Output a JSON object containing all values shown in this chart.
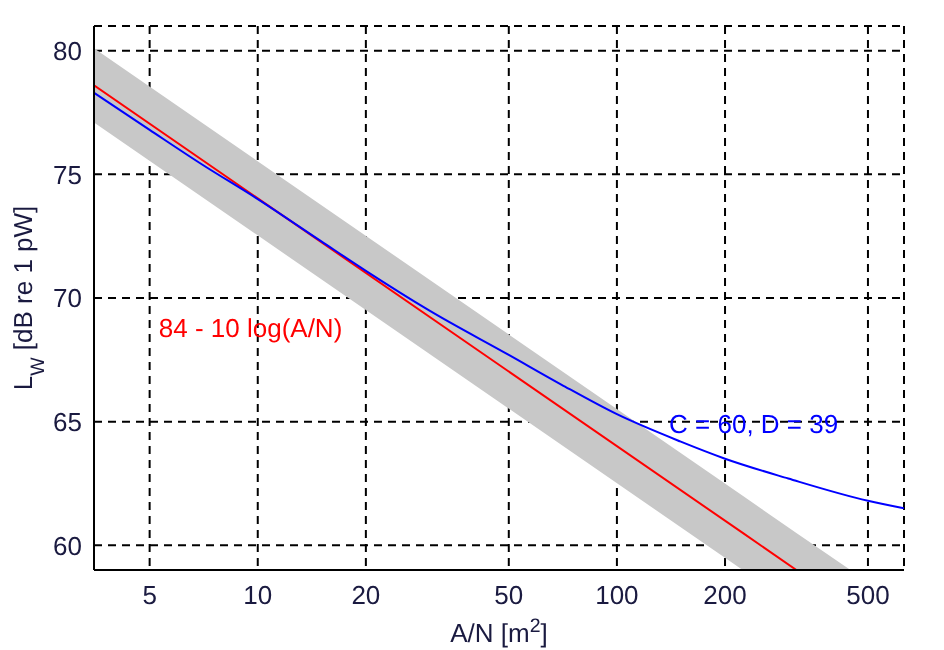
{
  "chart_data": {
    "type": "line",
    "xlabel": "A/N  [m$^{2}$]",
    "ylabel": "L$_{W}$  [dB re 1 pW]",
    "log": "x",
    "xlim": [
      3.5,
      630
    ],
    "ylim": [
      59,
      81
    ],
    "xticks": [
      5,
      10,
      20,
      50,
      100,
      200,
      500
    ],
    "yticks": [
      60,
      65,
      70,
      75,
      80
    ],
    "grid": true,
    "marker": "none",
    "line_style": "solid",
    "series": [
      {
        "color": "#ff0000",
        "x": [
          3.5,
          224,
          316,
          447
        ],
        "values": [
          78.6,
          60.5,
          59.0,
          null
        ],
        "upper": [
          80.1,
          62.0,
          60.5,
          59.0
        ],
        "lower": [
          77.1,
          59.0,
          59.0,
          59.0
        ]
      },
      {
        "color": "#0000ff",
        "x": [
          3.5,
          5,
          7,
          10,
          15,
          20,
          30,
          50,
          70,
          100,
          150,
          200,
          300,
          500,
          630
        ],
        "values": [
          78.3,
          76.8,
          75.4,
          74.0,
          72.3,
          71.1,
          69.5,
          67.7,
          66.5,
          65.3,
          64.2,
          63.5,
          62.7,
          61.8,
          61.5
        ]
      }
    ],
    "annotations": [
      "84 - 10 log(A/N)",
      "C = 60, D = 39"
    ]
  }
}
